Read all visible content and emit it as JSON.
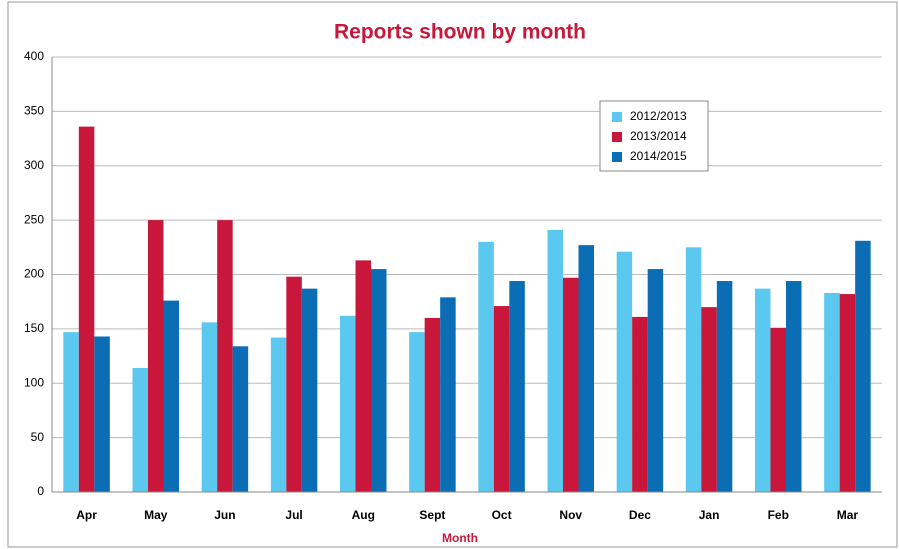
{
  "chart_data": {
    "type": "bar",
    "title": "Reports shown by month",
    "x_label": "Month",
    "categories": [
      "Apr",
      "May",
      "Jun",
      "Jul",
      "Aug",
      "Sept",
      "Oct",
      "Nov",
      "Dec",
      "Jan",
      "Feb",
      "Mar"
    ],
    "series": [
      {
        "name": "2012/2013",
        "color": "#5bc8f0",
        "values": [
          147,
          114,
          156,
          142,
          162,
          147,
          230,
          241,
          221,
          225,
          187,
          183
        ]
      },
      {
        "name": "2013/2014",
        "color": "#c8173a",
        "values": [
          336,
          250,
          250,
          198,
          213,
          160,
          171,
          197,
          161,
          170,
          151,
          182
        ]
      },
      {
        "name": "2014/2015",
        "color": "#0b6db3",
        "values": [
          143,
          176,
          134,
          187,
          205,
          179,
          194,
          227,
          205,
          194,
          194,
          231
        ]
      }
    ],
    "ylim": [
      0,
      400
    ],
    "yticks": [
      0,
      50,
      100,
      150,
      200,
      250,
      300,
      350,
      400
    ],
    "grid": true
  }
}
